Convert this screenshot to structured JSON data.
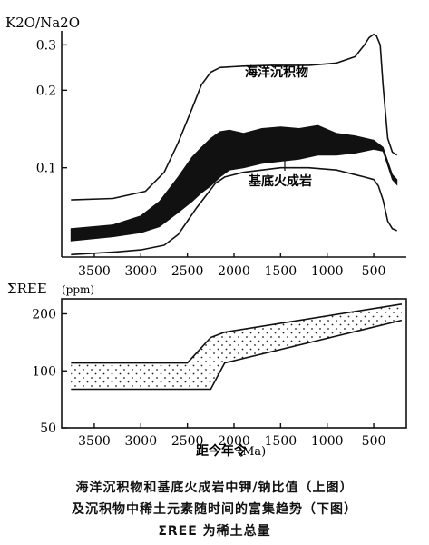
{
  "chart_data": [
    {
      "type": "area",
      "ylabel": "K2O/Na2O",
      "yscale": "log",
      "x_reversed": true,
      "ylim": [
        0.045,
        0.34
      ],
      "xlim": [
        3850,
        150
      ],
      "x_ticks": [
        3500,
        3000,
        2500,
        2000,
        1500,
        1000,
        500
      ],
      "y_ticks": [
        0.1,
        0.2,
        0.3
      ],
      "y_tick_labels": [
        "0.1",
        "0.2",
        "0.3"
      ],
      "series": [
        {
          "name": "海洋沉积物",
          "style": "outline",
          "x": [
            3750,
            3300,
            2950,
            2750,
            2600,
            2450,
            2350,
            2250,
            2150,
            1900,
            1600,
            1200,
            900,
            700,
            600,
            550,
            500,
            470,
            430,
            400,
            350,
            300,
            250
          ],
          "y": [
            0.075,
            0.076,
            0.081,
            0.096,
            0.125,
            0.17,
            0.21,
            0.235,
            0.245,
            0.248,
            0.25,
            0.25,
            0.255,
            0.27,
            0.3,
            0.32,
            0.33,
            0.325,
            0.3,
            0.21,
            0.13,
            0.115,
            0.112
          ]
        },
        {
          "name": "基底火成岩",
          "style": "filled-band",
          "x": [
            3750,
            3300,
            3000,
            2800,
            2600,
            2450,
            2350,
            2250,
            2150,
            2050,
            1900,
            1700,
            1500,
            1300,
            1100,
            900,
            700,
            500,
            400,
            300,
            250
          ],
          "upper": [
            0.058,
            0.06,
            0.065,
            0.074,
            0.092,
            0.11,
            0.12,
            0.13,
            0.138,
            0.14,
            0.136,
            0.142,
            0.144,
            0.142,
            0.146,
            0.136,
            0.133,
            0.128,
            0.12,
            0.094,
            0.09
          ],
          "lower": [
            0.052,
            0.054,
            0.056,
            0.059,
            0.067,
            0.074,
            0.08,
            0.085,
            0.092,
            0.098,
            0.1,
            0.104,
            0.106,
            0.108,
            0.112,
            0.112,
            0.114,
            0.118,
            0.116,
            0.09,
            0.086
          ]
        },
        {
          "name": "",
          "style": "outline",
          "x": [
            3750,
            3300,
            3000,
            2750,
            2600,
            2500,
            2400,
            2300,
            2200,
            2100,
            1900,
            1500,
            1200,
            900,
            700,
            600,
            500,
            450,
            400,
            350,
            300,
            250
          ],
          "y": [
            0.046,
            0.047,
            0.048,
            0.05,
            0.055,
            0.062,
            0.07,
            0.078,
            0.087,
            0.092,
            0.096,
            0.1,
            0.1,
            0.098,
            0.094,
            0.092,
            0.09,
            0.085,
            0.075,
            0.062,
            0.058,
            0.057
          ]
        }
      ],
      "annotations": [
        "海洋沉积物",
        "基底火成岩"
      ]
    },
    {
      "type": "area",
      "ylabel": "ΣREE",
      "ylabel_unit": "(ppm)",
      "yscale": "log",
      "x_reversed": true,
      "xlabel": "距今年令",
      "xlabel_unit": "(Ma)",
      "ylim": [
        50,
        240
      ],
      "xlim": [
        3850,
        150
      ],
      "x_ticks": [
        3500,
        3000,
        2500,
        2000,
        1500,
        1000,
        500
      ],
      "y_ticks": [
        50,
        100,
        200
      ],
      "y_tick_labels": [
        "50",
        "100",
        "200"
      ],
      "series": [
        {
          "name": "",
          "style": "dotted-band",
          "x": [
            3750,
            2500,
            2250,
            2100,
            200
          ],
          "upper": [
            110,
            110,
            150,
            160,
            225
          ],
          "lower": [
            80,
            80,
            80,
            110,
            185
          ]
        }
      ]
    }
  ],
  "caption": [
    "海洋沉积物和基底火成岩中钾/钠比值（上图）",
    "及沉积物中稀土元素随时间的富集趋势（下图）",
    "ΣREE 为稀土总量"
  ]
}
